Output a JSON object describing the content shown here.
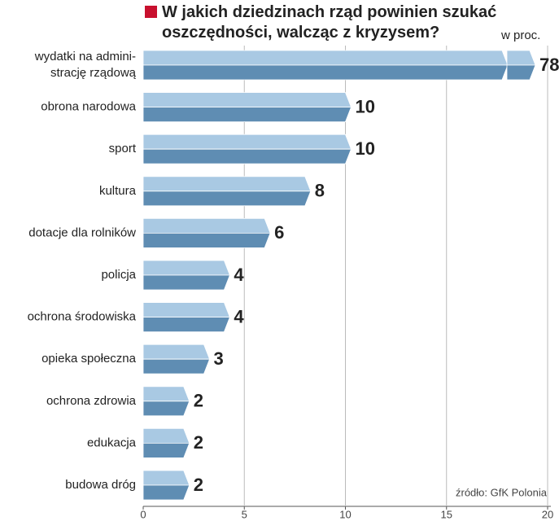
{
  "chart_data": {
    "type": "bar",
    "orientation": "horizontal",
    "title": "W jakich dziedzinach rząd powinien szukać\noszczędności, walcząc z kryzysem?",
    "unit_label": "w proc.",
    "source": "źródło: GfK Polonia",
    "categories": [
      "wydatki na admini-\nstrację rządową",
      "obrona narodowa",
      "sport",
      "kultura",
      "dotacje dla rolników",
      "policja",
      "ochrona środowiska",
      "opieka społeczna",
      "ochrona zdrowia",
      "edukacja",
      "budowa dróg"
    ],
    "values": [
      78,
      10,
      10,
      8,
      6,
      4,
      4,
      3,
      2,
      2,
      2
    ],
    "color_light": "#a9c9e3",
    "color_dark": "#5f8db3",
    "xlim": [
      0,
      20
    ],
    "xticks": [
      0,
      5,
      10,
      15,
      20
    ],
    "grid": true,
    "axis_break": true
  }
}
